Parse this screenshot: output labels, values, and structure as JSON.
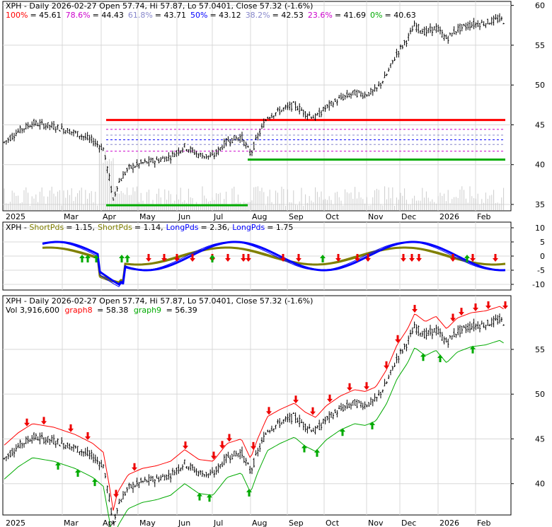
{
  "chart_data": [
    {
      "type": "candlestick",
      "panel": "price-fibonacci",
      "header": {
        "prefix": "XPH - Daily 2026-02-27 Open 57.74, Hi 57.87, Lo 57.0401, Close 57.32 (-1.6%)",
        "fib_levels": [
          {
            "label": "100%",
            "value": "45.61",
            "color": "#ff0000"
          },
          {
            "label": "78.6%",
            "value": "44.43",
            "color": "#cc00cc"
          },
          {
            "label": "61.8%",
            "value": "43.71",
            "color": "#8888cc"
          },
          {
            "label": "50%",
            "value": "43.12",
            "color": "#0000ff"
          },
          {
            "label": "38.2%",
            "value": "42.53",
            "color": "#8888cc"
          },
          {
            "label": "23.6%",
            "value": "41.69",
            "color": "#cc00cc"
          },
          {
            "label": "0%",
            "value": "40.63",
            "color": "#00aa00"
          }
        ]
      },
      "ylim": [
        34.2,
        60.5
      ],
      "y_ticks": [
        "60",
        "55",
        "50",
        "45",
        "40",
        "35"
      ],
      "x_labels": [
        "2025",
        "Mar",
        "Apr",
        "May",
        "Jun",
        "Jul",
        "Aug",
        "Sep",
        "Oct",
        "Nov",
        "Dec",
        "2026",
        "Feb"
      ]
    },
    {
      "type": "line",
      "panel": "xph-indicator",
      "header": {
        "prefix": "XPH - ",
        "items": [
          {
            "label": "ShortPds",
            "value": "1.15",
            "color": "#808000"
          },
          {
            "label": "ShortPds",
            "value": "1.14",
            "color": "#808000"
          },
          {
            "label": "LongPds",
            "value": "2.36",
            "color": "#0000ff"
          },
          {
            "label": "LongPds",
            "value": "1.75",
            "color": "#0000ff"
          }
        ]
      },
      "ylim": [
        -12,
        12
      ],
      "y_ticks": [
        "10",
        "5",
        "0",
        "-5",
        "-10"
      ]
    },
    {
      "type": "candlestick",
      "panel": "price-stops",
      "header": {
        "line1": "XPH - Daily 2026-02-27 Open 57.74, Hi 57.87, Lo 57.0401, Close 57.32 (-1.6%)",
        "vol_label": "Vol 3,916,600",
        "graph8_label": "graph8",
        "graph8_value": "= 58.38",
        "graph9_label": "graph9",
        "graph9_value": "= 56.39",
        "graph8_color": "#ff0000",
        "graph9_color": "#00aa00"
      },
      "ylim": [
        36.5,
        61
      ],
      "y_ticks": [
        "55",
        "50",
        "45",
        "40"
      ],
      "x_labels": [
        "2025",
        "Mar",
        "Apr",
        "May",
        "Jun",
        "Jul",
        "Aug",
        "Sep",
        "Oct",
        "Nov",
        "Dec",
        "2026",
        "Feb"
      ]
    }
  ]
}
